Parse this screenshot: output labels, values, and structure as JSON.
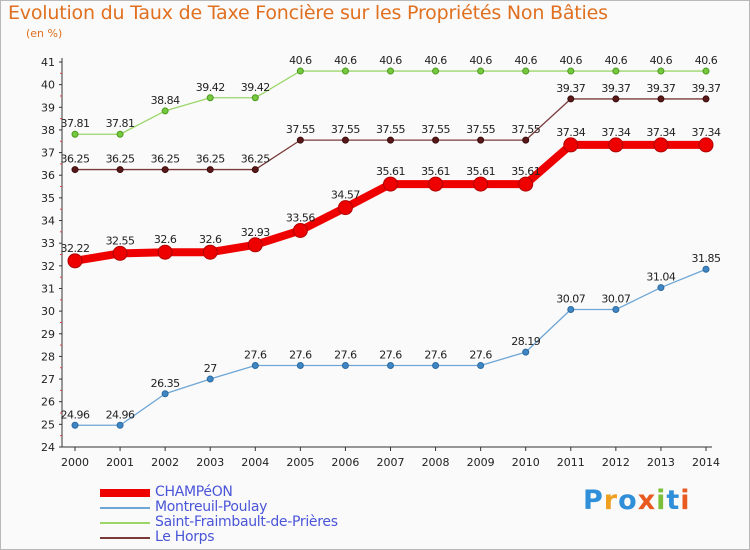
{
  "title": "Evolution du Taux de Taxe Foncière sur les Propriétés Non Bâties",
  "unit": "(en %)",
  "logo": "Proxiti",
  "chart_data": {
    "type": "line",
    "title": "Evolution du Taux de Taxe Foncière sur les Propriétés Non Bâties",
    "ylabel": "(en %)",
    "xlabel": "",
    "ylim": [
      24,
      41
    ],
    "grid": false,
    "legend": "bottom",
    "x": [
      "2000",
      "2001",
      "2002",
      "2003",
      "2004",
      "2005",
      "2006",
      "2007",
      "2008",
      "2009",
      "2010",
      "2011",
      "2012",
      "2013",
      "2014"
    ],
    "yticks": [
      "24",
      "25",
      "26",
      "27",
      "28",
      "29",
      "30",
      "31",
      "32",
      "33",
      "34",
      "35",
      "36",
      "37",
      "38",
      "39",
      "40",
      "41"
    ],
    "series": [
      {
        "name": "CHAMPéON",
        "color": "#ee0000",
        "values": [
          32.22,
          32.55,
          32.6,
          32.6,
          32.93,
          33.56,
          34.57,
          35.61,
          35.61,
          35.61,
          35.61,
          37.34,
          37.34,
          37.34,
          37.34
        ],
        "labels": [
          "32.22",
          "32.55",
          "32.6",
          "32.6",
          "32.93",
          "33.56",
          "34.57",
          "35.61",
          "35.61",
          "35.61",
          "35.61",
          "37.34",
          "37.34",
          "37.34",
          "37.34"
        ]
      },
      {
        "name": "Montreuil-Poulay",
        "color": "#6ea6d6",
        "values": [
          24.96,
          24.96,
          26.35,
          27,
          27.6,
          27.6,
          27.6,
          27.6,
          27.6,
          27.6,
          28.19,
          30.07,
          30.07,
          31.04,
          31.85
        ],
        "labels": [
          "24.96",
          "24.96",
          "26.35",
          "27",
          "27.6",
          "27.6",
          "27.6",
          "27.6",
          "27.6",
          "27.6",
          "28.19",
          "30.07",
          "30.07",
          "31.04",
          "31.85"
        ]
      },
      {
        "name": "Saint-Fraimbault-de-Prières",
        "color": "#9cd66a",
        "values": [
          37.81,
          37.81,
          38.84,
          39.42,
          39.42,
          40.6,
          40.6,
          40.6,
          40.6,
          40.6,
          40.6,
          40.6,
          40.6,
          40.6,
          40.6
        ],
        "labels": [
          "37.81",
          "37.81",
          "38.84",
          "39.42",
          "39.42",
          "40.6",
          "40.6",
          "40.6",
          "40.6",
          "40.6",
          "40.6",
          "40.6",
          "40.6",
          "40.6",
          "40.6"
        ]
      },
      {
        "name": "Le Horps",
        "color": "#7a3a3a",
        "values": [
          36.25,
          36.25,
          36.25,
          36.25,
          36.25,
          37.55,
          37.55,
          37.55,
          37.55,
          37.55,
          37.55,
          39.37,
          39.37,
          39.37,
          39.37
        ],
        "labels": [
          "36.25",
          "36.25",
          "36.25",
          "36.25",
          "36.25",
          "37.55",
          "37.55",
          "37.55",
          "37.55",
          "37.55",
          "37.55",
          "39.37",
          "39.37",
          "39.37",
          "39.37"
        ]
      }
    ]
  }
}
